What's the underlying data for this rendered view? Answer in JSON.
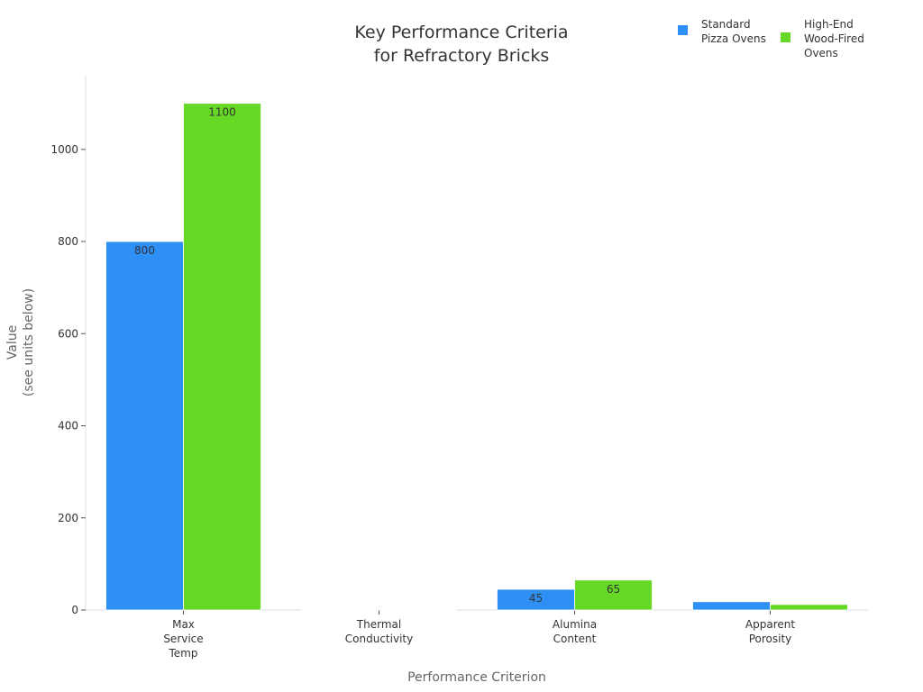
{
  "chart_data": {
    "type": "bar",
    "title": "Key Performance Criteria\nfor Refractory Bricks",
    "x_label": "Performance Criterion",
    "y_label": "Value\n(see units below)",
    "categories": [
      "Max\nService\nTemp",
      "Thermal\nConductivity",
      "Alumina\nContent",
      "Apparent\nPorosity"
    ],
    "series": [
      {
        "name": "Standard\nPizza Ovens",
        "color": "#2e8ff5",
        "values": [
          800,
          1.2,
          45,
          18
        ]
      },
      {
        "name": "High-End\nWood-Fired\nOvens",
        "color": "#66d926",
        "values": [
          1100,
          1.0,
          65,
          12
        ]
      }
    ],
    "ylim": [
      0,
      1160
    ],
    "yticks": [
      0,
      200,
      400,
      600,
      800,
      1000
    ],
    "legend": "top-right"
  }
}
